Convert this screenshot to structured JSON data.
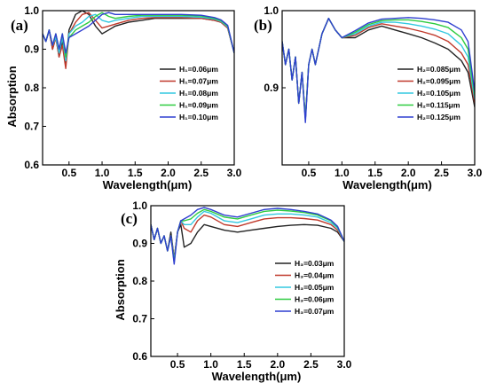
{
  "chart_data": [
    {
      "type": "line",
      "panel_label": "(a)",
      "xlabel": "Wavelength(μm)",
      "ylabel": "Absorption",
      "xlim": [
        0.1,
        3.0
      ],
      "ylim": [
        0.6,
        1.0
      ],
      "xticks": [
        0.5,
        1.0,
        1.5,
        2.0,
        2.5,
        3.0
      ],
      "xtick_labels": [
        "0.5",
        "1.0",
        "1.5",
        "2.0",
        "2.5",
        "3.0"
      ],
      "yticks": [
        0.6,
        0.7,
        0.8,
        0.9,
        1.0
      ],
      "ytick_labels": [
        "0.6",
        "0.7",
        "0.8",
        "0.9",
        "1.0"
      ],
      "legend_position": "center-right",
      "series": [
        {
          "name": "H₁=0.06μm",
          "color": "#222222",
          "x": [
            0.1,
            0.15,
            0.2,
            0.25,
            0.3,
            0.35,
            0.4,
            0.45,
            0.5,
            0.6,
            0.7,
            0.8,
            0.9,
            1.0,
            1.1,
            1.2,
            1.4,
            1.6,
            1.8,
            2.0,
            2.2,
            2.5,
            2.7,
            2.8,
            2.9,
            3.0
          ],
          "y": [
            0.94,
            0.92,
            0.95,
            0.9,
            0.93,
            0.88,
            0.92,
            0.86,
            0.95,
            0.99,
            1.0,
            0.99,
            0.96,
            0.94,
            0.95,
            0.96,
            0.97,
            0.975,
            0.98,
            0.98,
            0.98,
            0.98,
            0.975,
            0.97,
            0.955,
            0.89
          ]
        },
        {
          "name": "H₁=0.07μm",
          "color": "#c0392b",
          "x": [
            0.1,
            0.15,
            0.2,
            0.25,
            0.3,
            0.35,
            0.4,
            0.45,
            0.5,
            0.6,
            0.7,
            0.8,
            0.9,
            1.0,
            1.1,
            1.2,
            1.4,
            1.6,
            1.8,
            2.0,
            2.2,
            2.5,
            2.7,
            2.8,
            2.9,
            3.0
          ],
          "y": [
            0.94,
            0.92,
            0.95,
            0.9,
            0.93,
            0.88,
            0.91,
            0.85,
            0.94,
            0.97,
            0.99,
            0.995,
            0.975,
            0.955,
            0.96,
            0.965,
            0.975,
            0.98,
            0.982,
            0.982,
            0.982,
            0.98,
            0.975,
            0.97,
            0.955,
            0.89
          ]
        },
        {
          "name": "H₁=0.08μm",
          "color": "#33c8e0",
          "x": [
            0.1,
            0.15,
            0.2,
            0.25,
            0.3,
            0.35,
            0.4,
            0.45,
            0.5,
            0.6,
            0.7,
            0.8,
            0.9,
            1.0,
            1.1,
            1.2,
            1.4,
            1.6,
            1.8,
            2.0,
            2.2,
            2.5,
            2.7,
            2.8,
            2.9,
            3.0
          ],
          "y": [
            0.94,
            0.92,
            0.95,
            0.91,
            0.93,
            0.89,
            0.93,
            0.87,
            0.94,
            0.96,
            0.97,
            0.985,
            0.99,
            0.975,
            0.97,
            0.975,
            0.98,
            0.985,
            0.985,
            0.985,
            0.985,
            0.983,
            0.978,
            0.972,
            0.958,
            0.89
          ]
        },
        {
          "name": "H₁=0.09μm",
          "color": "#2ecc40",
          "x": [
            0.1,
            0.15,
            0.2,
            0.25,
            0.3,
            0.35,
            0.4,
            0.45,
            0.5,
            0.6,
            0.7,
            0.8,
            0.9,
            1.0,
            1.1,
            1.2,
            1.4,
            1.6,
            1.8,
            2.0,
            2.2,
            2.5,
            2.7,
            2.8,
            2.9,
            3.0
          ],
          "y": [
            0.94,
            0.92,
            0.95,
            0.91,
            0.94,
            0.9,
            0.94,
            0.88,
            0.93,
            0.95,
            0.96,
            0.97,
            0.985,
            0.995,
            0.985,
            0.98,
            0.985,
            0.988,
            0.988,
            0.988,
            0.988,
            0.986,
            0.98,
            0.974,
            0.96,
            0.89
          ]
        },
        {
          "name": "H₁=0.10μm",
          "color": "#2f3fd0",
          "x": [
            0.1,
            0.15,
            0.2,
            0.25,
            0.3,
            0.35,
            0.4,
            0.45,
            0.5,
            0.6,
            0.7,
            0.8,
            0.9,
            1.0,
            1.1,
            1.2,
            1.4,
            1.6,
            1.8,
            2.0,
            2.2,
            2.5,
            2.7,
            2.8,
            2.9,
            3.0
          ],
          "y": [
            0.94,
            0.92,
            0.95,
            0.91,
            0.94,
            0.9,
            0.94,
            0.89,
            0.93,
            0.94,
            0.95,
            0.96,
            0.975,
            0.99,
            0.995,
            0.99,
            0.99,
            0.99,
            0.99,
            0.99,
            0.99,
            0.988,
            0.982,
            0.976,
            0.962,
            0.89
          ]
        }
      ]
    },
    {
      "type": "line",
      "panel_label": "(b)",
      "xlabel": "Wavelength(μm)",
      "ylabel": "",
      "xlim": [
        0.1,
        3.0
      ],
      "ylim": [
        0.8,
        1.0
      ],
      "xticks": [
        0.5,
        1.0,
        1.5,
        2.0,
        2.5,
        3.0
      ],
      "xtick_labels": [
        "0.5",
        "1.0",
        "1.5",
        "2.0",
        "2.5",
        "3.0"
      ],
      "yticks": [
        0.9,
        1.0
      ],
      "ytick_labels": [
        "0.9",
        "1.0"
      ],
      "legend_position": "center-right",
      "series": [
        {
          "name": "H₂=0.085μm",
          "color": "#222222",
          "x": [
            0.1,
            0.15,
            0.2,
            0.25,
            0.3,
            0.35,
            0.4,
            0.45,
            0.5,
            0.55,
            0.6,
            0.7,
            0.8,
            0.9,
            1.0,
            1.2,
            1.4,
            1.6,
            1.8,
            2.0,
            2.2,
            2.4,
            2.6,
            2.8,
            2.9,
            3.0
          ],
          "y": [
            0.96,
            0.93,
            0.95,
            0.91,
            0.94,
            0.88,
            0.92,
            0.86,
            0.93,
            0.95,
            0.93,
            0.97,
            0.99,
            0.975,
            0.965,
            0.965,
            0.975,
            0.98,
            0.975,
            0.97,
            0.965,
            0.958,
            0.95,
            0.935,
            0.92,
            0.875
          ]
        },
        {
          "name": "H₂=0.095μm",
          "color": "#c0392b",
          "x": [
            0.1,
            0.15,
            0.2,
            0.25,
            0.3,
            0.35,
            0.4,
            0.45,
            0.5,
            0.55,
            0.6,
            0.7,
            0.8,
            0.9,
            1.0,
            1.2,
            1.4,
            1.6,
            1.8,
            2.0,
            2.2,
            2.4,
            2.6,
            2.8,
            2.9,
            3.0
          ],
          "y": [
            0.96,
            0.93,
            0.95,
            0.91,
            0.94,
            0.88,
            0.92,
            0.86,
            0.93,
            0.95,
            0.93,
            0.97,
            0.99,
            0.975,
            0.965,
            0.968,
            0.978,
            0.983,
            0.98,
            0.977,
            0.973,
            0.968,
            0.96,
            0.945,
            0.93,
            0.88
          ]
        },
        {
          "name": "H₂=0.105μm",
          "color": "#33c8e0",
          "x": [
            0.1,
            0.15,
            0.2,
            0.25,
            0.3,
            0.35,
            0.4,
            0.45,
            0.5,
            0.55,
            0.6,
            0.7,
            0.8,
            0.9,
            1.0,
            1.2,
            1.4,
            1.6,
            1.8,
            2.0,
            2.2,
            2.4,
            2.6,
            2.8,
            2.9,
            3.0
          ],
          "y": [
            0.96,
            0.93,
            0.95,
            0.91,
            0.94,
            0.88,
            0.92,
            0.86,
            0.93,
            0.95,
            0.93,
            0.97,
            0.99,
            0.975,
            0.965,
            0.97,
            0.98,
            0.985,
            0.985,
            0.983,
            0.98,
            0.976,
            0.97,
            0.955,
            0.94,
            0.885
          ]
        },
        {
          "name": "H₂=0.115μm",
          "color": "#2ecc40",
          "x": [
            0.1,
            0.15,
            0.2,
            0.25,
            0.3,
            0.35,
            0.4,
            0.45,
            0.5,
            0.55,
            0.6,
            0.7,
            0.8,
            0.9,
            1.0,
            1.2,
            1.4,
            1.6,
            1.8,
            2.0,
            2.2,
            2.4,
            2.6,
            2.8,
            2.9,
            3.0
          ],
          "y": [
            0.96,
            0.93,
            0.95,
            0.91,
            0.94,
            0.88,
            0.92,
            0.86,
            0.93,
            0.95,
            0.93,
            0.97,
            0.99,
            0.975,
            0.965,
            0.972,
            0.982,
            0.987,
            0.988,
            0.988,
            0.986,
            0.983,
            0.978,
            0.965,
            0.95,
            0.89
          ]
        },
        {
          "name": "H₂=0.125μm",
          "color": "#2f3fd0",
          "x": [
            0.1,
            0.15,
            0.2,
            0.25,
            0.3,
            0.35,
            0.4,
            0.45,
            0.5,
            0.55,
            0.6,
            0.7,
            0.8,
            0.9,
            1.0,
            1.2,
            1.4,
            1.6,
            1.8,
            2.0,
            2.2,
            2.4,
            2.6,
            2.8,
            2.9,
            3.0
          ],
          "y": [
            0.96,
            0.93,
            0.95,
            0.91,
            0.94,
            0.88,
            0.92,
            0.855,
            0.93,
            0.95,
            0.93,
            0.97,
            0.99,
            0.975,
            0.965,
            0.974,
            0.984,
            0.989,
            0.99,
            0.991,
            0.99,
            0.988,
            0.985,
            0.975,
            0.96,
            0.895
          ]
        }
      ]
    },
    {
      "type": "line",
      "panel_label": "(c)",
      "xlabel": "Wavelength(μm)",
      "ylabel": "Absorption",
      "xlim": [
        0.1,
        3.0
      ],
      "ylim": [
        0.6,
        1.0
      ],
      "xticks": [
        0.5,
        1.0,
        1.5,
        2.0,
        2.5,
        3.0
      ],
      "xtick_labels": [
        "0.5",
        "1.0",
        "1.5",
        "2.0",
        "2.5",
        "3.0"
      ],
      "yticks": [
        0.6,
        0.7,
        0.8,
        0.9,
        1.0
      ],
      "ytick_labels": [
        "0.6",
        "0.7",
        "0.8",
        "0.9",
        "1.0"
      ],
      "legend_position": "center-right",
      "series": [
        {
          "name": "H₃=0.03μm",
          "color": "#222222",
          "x": [
            0.1,
            0.15,
            0.2,
            0.25,
            0.3,
            0.35,
            0.4,
            0.45,
            0.5,
            0.55,
            0.6,
            0.7,
            0.8,
            0.9,
            1.0,
            1.2,
            1.4,
            1.6,
            1.8,
            2.0,
            2.2,
            2.4,
            2.6,
            2.8,
            2.9,
            3.0
          ],
          "y": [
            0.95,
            0.91,
            0.94,
            0.9,
            0.92,
            0.88,
            0.93,
            0.86,
            0.93,
            0.95,
            0.89,
            0.9,
            0.93,
            0.95,
            0.945,
            0.935,
            0.93,
            0.935,
            0.94,
            0.945,
            0.948,
            0.95,
            0.948,
            0.94,
            0.93,
            0.905
          ]
        },
        {
          "name": "H₃=0.04μm",
          "color": "#c0392b",
          "x": [
            0.1,
            0.15,
            0.2,
            0.25,
            0.3,
            0.35,
            0.4,
            0.45,
            0.5,
            0.55,
            0.6,
            0.7,
            0.8,
            0.9,
            1.0,
            1.2,
            1.4,
            1.6,
            1.8,
            2.0,
            2.2,
            2.4,
            2.6,
            2.8,
            2.9,
            3.0
          ],
          "y": [
            0.95,
            0.91,
            0.94,
            0.9,
            0.92,
            0.88,
            0.92,
            0.86,
            0.93,
            0.96,
            0.94,
            0.93,
            0.96,
            0.975,
            0.97,
            0.95,
            0.945,
            0.955,
            0.965,
            0.968,
            0.968,
            0.966,
            0.962,
            0.95,
            0.935,
            0.905
          ]
        },
        {
          "name": "H₃=0.05μm",
          "color": "#33c8e0",
          "x": [
            0.1,
            0.15,
            0.2,
            0.25,
            0.3,
            0.35,
            0.4,
            0.45,
            0.5,
            0.55,
            0.6,
            0.7,
            0.8,
            0.9,
            1.0,
            1.2,
            1.4,
            1.6,
            1.8,
            2.0,
            2.2,
            2.4,
            2.6,
            2.8,
            2.9,
            3.0
          ],
          "y": [
            0.95,
            0.91,
            0.94,
            0.9,
            0.92,
            0.88,
            0.92,
            0.855,
            0.93,
            0.96,
            0.95,
            0.95,
            0.97,
            0.985,
            0.98,
            0.96,
            0.955,
            0.965,
            0.975,
            0.978,
            0.978,
            0.975,
            0.97,
            0.955,
            0.94,
            0.905
          ]
        },
        {
          "name": "H₃=0.06μm",
          "color": "#2ecc40",
          "x": [
            0.1,
            0.15,
            0.2,
            0.25,
            0.3,
            0.35,
            0.4,
            0.45,
            0.5,
            0.55,
            0.6,
            0.7,
            0.8,
            0.9,
            1.0,
            1.2,
            1.4,
            1.6,
            1.8,
            2.0,
            2.2,
            2.4,
            2.6,
            2.8,
            2.9,
            3.0
          ],
          "y": [
            0.95,
            0.91,
            0.94,
            0.9,
            0.92,
            0.88,
            0.92,
            0.85,
            0.93,
            0.96,
            0.96,
            0.965,
            0.98,
            0.99,
            0.985,
            0.97,
            0.965,
            0.975,
            0.985,
            0.988,
            0.986,
            0.982,
            0.975,
            0.96,
            0.943,
            0.905
          ]
        },
        {
          "name": "H₃=0.07μm",
          "color": "#2f3fd0",
          "x": [
            0.1,
            0.15,
            0.2,
            0.25,
            0.3,
            0.35,
            0.4,
            0.45,
            0.5,
            0.55,
            0.6,
            0.7,
            0.8,
            0.9,
            1.0,
            1.2,
            1.4,
            1.6,
            1.8,
            2.0,
            2.2,
            2.4,
            2.6,
            2.8,
            2.9,
            3.0
          ],
          "y": [
            0.95,
            0.91,
            0.94,
            0.9,
            0.92,
            0.88,
            0.92,
            0.845,
            0.93,
            0.96,
            0.965,
            0.975,
            0.99,
            0.995,
            0.99,
            0.975,
            0.97,
            0.98,
            0.99,
            0.993,
            0.99,
            0.985,
            0.978,
            0.962,
            0.945,
            0.905
          ]
        }
      ]
    }
  ]
}
